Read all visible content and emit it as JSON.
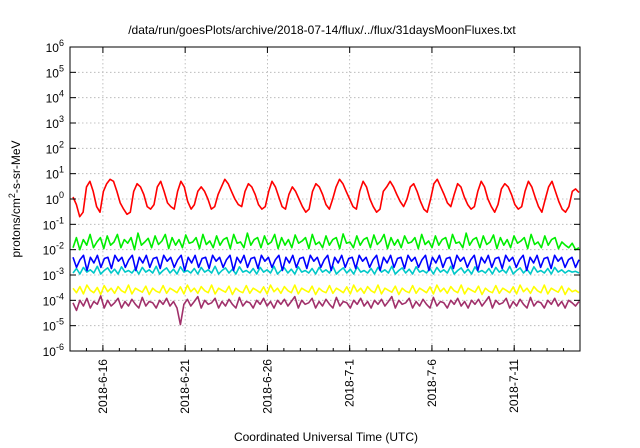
{
  "chart_data": {
    "type": "line",
    "title": "/data/run/goesPlots/archive/2018-07-14/flux/../flux/31daysMoonFluxes.txt",
    "xlabel": "Coordinated Universal Time (UTC)",
    "ylabel": "protons/cm²-s-sr-MeV",
    "x_range": [
      "2018-06-14",
      "2018-07-15"
    ],
    "x_ticks": [
      "2018-6-16",
      "2018-6-21",
      "2018-6-26",
      "2018-7-1",
      "2018-7-6",
      "2018-7-11"
    ],
    "y_scale": "log",
    "ylim": [
      1e-06,
      1000000.0
    ],
    "y_ticks": [
      {
        "base": "10",
        "exp": "-6"
      },
      {
        "base": "10",
        "exp": "-5"
      },
      {
        "base": "10",
        "exp": "-4"
      },
      {
        "base": "10",
        "exp": "-3"
      },
      {
        "base": "10",
        "exp": "-2"
      },
      {
        "base": "10",
        "exp": "-1"
      },
      {
        "base": "10",
        "exp": "0"
      },
      {
        "base": "10",
        "exp": "1"
      },
      {
        "base": "10",
        "exp": "2"
      },
      {
        "base": "10",
        "exp": "3"
      },
      {
        "base": "10",
        "exp": "4"
      },
      {
        "base": "10",
        "exp": "5"
      },
      {
        "base": "10",
        "exp": "6"
      }
    ],
    "grid": true,
    "series": [
      {
        "color": "#ff0000",
        "values": [
          1.2,
          0.6,
          0.2,
          0.3,
          3,
          5,
          2,
          0.5,
          0.3,
          2,
          4,
          6,
          5,
          2,
          0.7,
          0.4,
          0.25,
          0.3,
          2,
          4,
          3,
          1.5,
          0.5,
          0.4,
          0.6,
          3,
          5,
          2,
          0.7,
          0.5,
          0.4,
          2,
          5,
          3,
          0.8,
          0.4,
          0.6,
          2,
          3,
          2,
          1,
          0.4,
          0.5,
          1.5,
          3,
          6,
          4,
          2,
          1,
          0.6,
          0.5,
          2,
          4,
          3,
          1.5,
          0.6,
          0.4,
          0.5,
          2,
          5,
          3,
          1.2,
          0.5,
          0.4,
          1.5,
          3,
          2,
          1,
          0.5,
          0.3,
          0.4,
          2,
          4,
          3,
          1.5,
          0.6,
          0.4,
          1,
          3,
          6,
          4,
          2,
          1,
          0.5,
          0.4,
          2,
          5,
          3,
          1,
          0.5,
          0.3,
          0.4,
          2,
          3,
          5,
          3,
          1.5,
          0.8,
          0.5,
          1,
          3,
          4,
          2,
          0.8,
          0.4,
          0.3,
          1,
          4,
          6,
          3,
          1.5,
          0.7,
          0.5,
          1.5,
          4,
          3,
          1.2,
          0.6,
          0.4,
          0.5,
          2,
          5,
          3,
          1,
          0.5,
          0.3,
          0.6,
          2.5,
          4,
          3,
          1.5,
          0.6,
          0.4,
          0.5,
          2,
          5,
          3,
          1.2,
          0.5,
          0.3,
          1,
          3,
          5,
          2,
          0.8,
          0.4,
          0.3,
          0.5,
          2,
          2.5,
          1.8
        ]
      },
      {
        "color": "#00ee00",
        "values": [
          0.012,
          0.03,
          0.01,
          0.025,
          0.015,
          0.04,
          0.012,
          0.02,
          0.03,
          0.011,
          0.035,
          0.015,
          0.02,
          0.04,
          0.012,
          0.025,
          0.018,
          0.03,
          0.01,
          0.045,
          0.015,
          0.02,
          0.028,
          0.012,
          0.035,
          0.016,
          0.022,
          0.04,
          0.011,
          0.03,
          0.015,
          0.025,
          0.012,
          0.038,
          0.018,
          0.02,
          0.03,
          0.011,
          0.04,
          0.016,
          0.022,
          0.012,
          0.035,
          0.015,
          0.025,
          0.03,
          0.011,
          0.04,
          0.018,
          0.02,
          0.012,
          0.045,
          0.015,
          0.025,
          0.03,
          0.012,
          0.035,
          0.016,
          0.02,
          0.04,
          0.011,
          0.03,
          0.015,
          0.025,
          0.012,
          0.038,
          0.018,
          0.022,
          0.03,
          0.011,
          0.04,
          0.016,
          0.02,
          0.012,
          0.035,
          0.015,
          0.025,
          0.03,
          0.011,
          0.042,
          0.018,
          0.02,
          0.012,
          0.035,
          0.015,
          0.025,
          0.03,
          0.012,
          0.038,
          0.016,
          0.022,
          0.04,
          0.011,
          0.03,
          0.015,
          0.025,
          0.012,
          0.035,
          0.018,
          0.02,
          0.03,
          0.011,
          0.04,
          0.016,
          0.022,
          0.012,
          0.035,
          0.015,
          0.025,
          0.03,
          0.011,
          0.04,
          0.018,
          0.02,
          0.012,
          0.045,
          0.015,
          0.025,
          0.03,
          0.012,
          0.035,
          0.016,
          0.02,
          0.038,
          0.011,
          0.03,
          0.015,
          0.025,
          0.012,
          0.035,
          0.018,
          0.022,
          0.03,
          0.011,
          0.04,
          0.016,
          0.02,
          0.012,
          0.035,
          0.015,
          0.025,
          0.03,
          0.011,
          0.02,
          0.015,
          0.012,
          0.018,
          0.01,
          0.012
        ]
      },
      {
        "color": "#00c8c8",
        "values": [
          0.0012,
          0.0018,
          0.0011,
          0.002,
          0.0013,
          0.0016,
          0.0012,
          0.0022,
          0.0011,
          0.0015,
          0.0019,
          0.0012,
          0.0017,
          0.0011,
          0.0021,
          0.0013,
          0.0015,
          0.0012,
          0.0018,
          0.0011,
          0.002,
          0.0013,
          0.0016,
          0.0012,
          0.0022,
          0.0011,
          0.0015,
          0.0019,
          0.0012,
          0.0017,
          0.0011,
          0.0021,
          0.0013,
          0.0015,
          0.0012,
          0.0018,
          0.0011,
          0.002,
          0.0013,
          0.0016,
          0.0012,
          0.0022,
          0.0011,
          0.0015,
          0.0019,
          0.0012,
          0.0017,
          0.0011,
          0.0021,
          0.0013,
          0.0015,
          0.0012,
          0.0018,
          0.0011,
          0.002,
          0.0013,
          0.0016,
          0.0012,
          0.0022,
          0.0011,
          0.0015,
          0.0019,
          0.0012,
          0.0017,
          0.0011,
          0.0021,
          0.0013,
          0.0015,
          0.0012,
          0.0018,
          0.0011,
          0.002,
          0.0013,
          0.0016,
          0.0012,
          0.0022,
          0.0011,
          0.0015,
          0.0019,
          0.0012,
          0.0017,
          0.0011,
          0.0021,
          0.0013,
          0.0015,
          0.0012,
          0.0018,
          0.0011,
          0.002,
          0.0013,
          0.0016,
          0.0012,
          0.0022,
          0.0011,
          0.0015,
          0.0019,
          0.0012,
          0.0017,
          0.0011,
          0.0021,
          0.0013,
          0.0015,
          0.0012,
          0.0018,
          0.0011,
          0.002,
          0.0013,
          0.0016,
          0.0012,
          0.0022,
          0.0011,
          0.0015,
          0.0019,
          0.0012,
          0.0017,
          0.0011,
          0.0021,
          0.0013,
          0.0015,
          0.0012,
          0.0018,
          0.0011,
          0.002,
          0.0013,
          0.0016,
          0.0012,
          0.0022,
          0.0011,
          0.0015,
          0.0019,
          0.0012,
          0.0017,
          0.0011,
          0.0021,
          0.0013,
          0.0015,
          0.0012,
          0.0018,
          0.0011,
          0.002,
          0.0013,
          0.0016,
          0.0012,
          0.0015,
          0.0013,
          0.0014,
          0.0012
        ]
      },
      {
        "color": "#0000ff",
        "values": [
          0.005,
          0.002,
          0.004,
          0.006,
          0.0015,
          0.005,
          0.003,
          0.006,
          0.002,
          0.0045,
          0.005,
          0.0018,
          0.006,
          0.0035,
          0.005,
          0.002,
          0.004,
          0.006,
          0.0015,
          0.005,
          0.003,
          0.006,
          0.002,
          0.0045,
          0.005,
          0.0018,
          0.006,
          0.0035,
          0.005,
          0.002,
          0.004,
          0.006,
          0.0015,
          0.005,
          0.003,
          0.006,
          0.002,
          0.0045,
          0.005,
          0.0018,
          0.006,
          0.0035,
          0.005,
          0.002,
          0.004,
          0.006,
          0.0015,
          0.005,
          0.003,
          0.006,
          0.002,
          0.0045,
          0.005,
          0.0018,
          0.006,
          0.0035,
          0.005,
          0.002,
          0.004,
          0.006,
          0.0015,
          0.005,
          0.003,
          0.006,
          0.002,
          0.0045,
          0.005,
          0.0018,
          0.006,
          0.0035,
          0.005,
          0.002,
          0.004,
          0.006,
          0.0015,
          0.005,
          0.003,
          0.006,
          0.002,
          0.0045,
          0.005,
          0.0018,
          0.006,
          0.0035,
          0.005,
          0.002,
          0.004,
          0.006,
          0.0015,
          0.005,
          0.003,
          0.006,
          0.002,
          0.0045,
          0.005,
          0.0018,
          0.006,
          0.0035,
          0.005,
          0.002,
          0.004,
          0.006,
          0.0015,
          0.005,
          0.003,
          0.006,
          0.002,
          0.0045,
          0.005,
          0.0018,
          0.006,
          0.0035,
          0.005,
          0.002,
          0.004,
          0.006,
          0.0015,
          0.005,
          0.003,
          0.006,
          0.002,
          0.0045,
          0.005,
          0.0018,
          0.006,
          0.0035,
          0.005,
          0.002,
          0.004,
          0.006,
          0.0015,
          0.005,
          0.003,
          0.006,
          0.002,
          0.0045,
          0.005,
          0.0018,
          0.006,
          0.0035,
          0.005,
          0.002,
          0.004,
          0.005,
          0.002,
          0.004
        ]
      },
      {
        "color": "#ffff00",
        "values": [
          0.0003,
          0.0002,
          0.00035,
          0.00018,
          0.0004,
          0.00025,
          0.0002,
          0.00032,
          0.00017,
          0.00038,
          0.00022,
          0.0003,
          0.00019,
          0.00035,
          0.00024,
          0.0002,
          0.0004,
          0.00018,
          0.0003,
          0.00025,
          0.00021,
          0.00036,
          0.00017,
          0.0003,
          0.00023,
          0.0002,
          0.00038,
          0.00019,
          0.0003,
          0.00025,
          0.0002,
          0.00034,
          0.00018,
          0.0004,
          0.00022,
          0.0003,
          0.00019,
          0.00035,
          0.00024,
          0.0002,
          0.0004,
          0.00018,
          0.0003,
          0.00025,
          0.00021,
          0.00036,
          0.00017,
          0.0003,
          0.00023,
          0.0002,
          0.00038,
          0.00019,
          0.0003,
          0.00025,
          0.0002,
          0.00034,
          0.00018,
          0.0004,
          0.00022,
          0.0003,
          0.00019,
          0.00035,
          0.00024,
          0.0002,
          0.0004,
          0.00018,
          0.0003,
          0.00025,
          0.00021,
          0.00036,
          0.00017,
          0.0003,
          0.00023,
          0.0002,
          0.00038,
          0.00019,
          0.0003,
          0.00025,
          0.0002,
          0.00034,
          0.00018,
          0.0004,
          0.00022,
          0.0003,
          0.00019,
          0.00035,
          0.00024,
          0.0002,
          0.0004,
          0.00018,
          0.0003,
          0.00025,
          0.00021,
          0.00036,
          0.00017,
          0.0003,
          0.00023,
          0.0002,
          0.00038,
          0.00019,
          0.0003,
          0.00025,
          0.0002,
          0.00034,
          0.00018,
          0.0004,
          0.00022,
          0.0003,
          0.00019,
          0.00035,
          0.00024,
          0.0002,
          0.0004,
          0.00018,
          0.0003,
          0.00025,
          0.00021,
          0.00036,
          0.00017,
          0.0003,
          0.00023,
          0.0002,
          0.00038,
          0.00019,
          0.0003,
          0.00025,
          0.0002,
          0.00034,
          0.00018,
          0.0004,
          0.00022,
          0.0003,
          0.00019,
          0.00035,
          0.00024,
          0.0002,
          0.0004,
          0.00018,
          0.0003,
          0.00025,
          0.00021,
          0.00036,
          0.00017,
          0.0003,
          0.00022,
          0.00025,
          0.0002
        ]
      },
      {
        "color": "#a0306a",
        "values": [
          8e-05,
          4e-05,
          0.0001,
          6e-05,
          0.00012,
          5e-05,
          9e-05,
          7e-05,
          0.00015,
          5e-05,
          0.0001,
          6e-05,
          8e-05,
          0.00012,
          5e-05,
          9e-05,
          6e-05,
          0.00011,
          7e-05,
          5e-05,
          0.00013,
          6e-05,
          9e-05,
          8e-05,
          5e-05,
          0.0001,
          7e-05,
          0.00012,
          6e-05,
          9e-05,
          5e-05,
          1.1e-05,
          7e-05,
          0.00011,
          6e-05,
          9e-05,
          0.00014,
          5e-05,
          0.0001,
          7e-05,
          8e-05,
          0.00012,
          5e-05,
          9e-05,
          6e-05,
          0.00011,
          7e-05,
          5e-05,
          0.00013,
          6e-05,
          9e-05,
          8e-05,
          5e-05,
          0.0001,
          7e-05,
          0.00012,
          6e-05,
          9e-05,
          5e-05,
          0.0001,
          7e-05,
          0.00011,
          6e-05,
          9e-05,
          0.00014,
          5e-05,
          0.0001,
          7e-05,
          8e-05,
          0.00012,
          5e-05,
          9e-05,
          6e-05,
          0.00011,
          7e-05,
          5e-05,
          0.00013,
          6e-05,
          9e-05,
          8e-05,
          5e-05,
          0.0001,
          7e-05,
          0.00012,
          6e-05,
          9e-05,
          5e-05,
          0.0001,
          7e-05,
          0.00011,
          6e-05,
          9e-05,
          0.00014,
          5e-05,
          0.0001,
          7e-05,
          8e-05,
          0.00012,
          5e-05,
          9e-05,
          6e-05,
          0.00011,
          7e-05,
          5e-05,
          0.00013,
          6e-05,
          9e-05,
          8e-05,
          5e-05,
          0.0001,
          7e-05,
          0.00012,
          6e-05,
          9e-05,
          5e-05,
          0.0001,
          7e-05,
          0.00011,
          6e-05,
          9e-05,
          0.00014,
          5e-05,
          0.0001,
          7e-05,
          8e-05,
          0.00012,
          5e-05,
          9e-05,
          6e-05,
          0.00011,
          7e-05,
          5e-05,
          0.00013,
          6e-05,
          9e-05,
          8e-05,
          5e-05,
          0.0001,
          7e-05,
          0.00012,
          6e-05,
          9e-05,
          5e-05,
          0.0001,
          8e-05,
          6e-05,
          9e-05
        ]
      }
    ]
  }
}
